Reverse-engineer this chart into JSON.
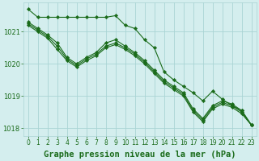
{
  "title": "Graphe pression niveau de la mer (hPa)",
  "background_color": "#d4eeee",
  "grid_color": "#aad4d4",
  "line_color": "#1a6b1a",
  "x_values": [
    0,
    1,
    2,
    3,
    4,
    5,
    6,
    7,
    8,
    9,
    10,
    11,
    12,
    13,
    14,
    15,
    16,
    17,
    18,
    19,
    20,
    21,
    22,
    23
  ],
  "series": [
    [
      1021.7,
      1021.45,
      1021.45,
      1021.45,
      1021.45,
      1021.45,
      1021.45,
      1021.45,
      1021.45,
      1021.5,
      1021.2,
      1021.1,
      1020.75,
      1020.5,
      1019.75,
      1019.5,
      1019.3,
      1019.1,
      1018.85,
      1019.15,
      1018.9,
      1018.7,
      1018.55,
      1018.1
    ],
    [
      1021.3,
      1021.1,
      1020.9,
      1020.65,
      1020.2,
      1020.0,
      1020.2,
      1020.35,
      1020.65,
      1020.75,
      1020.55,
      1020.35,
      1020.1,
      1019.8,
      1019.5,
      1019.3,
      1019.1,
      1018.6,
      1018.3,
      1018.7,
      1018.85,
      1018.75,
      1018.55,
      1018.1
    ],
    [
      1021.25,
      1021.05,
      1020.85,
      1020.55,
      1020.15,
      1019.95,
      1020.15,
      1020.3,
      1020.55,
      1020.65,
      1020.5,
      1020.3,
      1020.05,
      1019.75,
      1019.45,
      1019.25,
      1019.05,
      1018.55,
      1018.25,
      1018.65,
      1018.8,
      1018.7,
      1018.5,
      1018.1
    ],
    [
      1021.2,
      1021.0,
      1020.8,
      1020.45,
      1020.1,
      1019.9,
      1020.1,
      1020.25,
      1020.5,
      1020.6,
      1020.45,
      1020.25,
      1020.0,
      1019.7,
      1019.4,
      1019.2,
      1019.0,
      1018.5,
      1018.2,
      1018.6,
      1018.75,
      1018.65,
      1018.45,
      1018.1
    ]
  ],
  "ylim": [
    1017.75,
    1021.9
  ],
  "yticks": [
    1018,
    1019,
    1020,
    1021
  ],
  "xlim": [
    -0.5,
    23.5
  ],
  "title_fontsize": 7.5,
  "tick_fontsize": 6.0,
  "marker": "D",
  "markersize": 2.2,
  "linewidth": 0.8
}
